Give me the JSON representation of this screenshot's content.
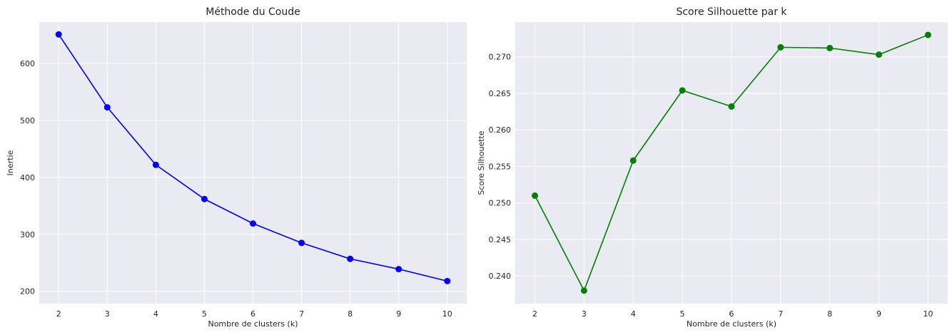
{
  "chart_data": [
    {
      "type": "line",
      "title": "Méthode du Coude",
      "xlabel": "Nombre de clusters (k)",
      "ylabel": "Inertie",
      "x": [
        2,
        3,
        4,
        5,
        6,
        7,
        8,
        9,
        10
      ],
      "xticks": [
        "2",
        "3",
        "4",
        "5",
        "6",
        "7",
        "8",
        "9",
        "10"
      ],
      "yticks": [
        "200",
        "300",
        "400",
        "500",
        "600"
      ],
      "ytick_values": [
        200,
        300,
        400,
        500,
        600
      ],
      "xlim": [
        1.6,
        10.4
      ],
      "ylim": [
        178.4,
        672.6
      ],
      "grid": true,
      "series": [
        {
          "values": [
            651,
            523,
            422,
            362,
            319,
            285,
            257,
            239,
            218
          ],
          "color": "#0000ff",
          "marker": "circle"
        }
      ]
    },
    {
      "type": "line",
      "title": "Score Silhouette par k",
      "xlabel": "Nombre de clusters (k)",
      "ylabel": "Score Silhouette",
      "x": [
        2,
        3,
        4,
        5,
        6,
        7,
        8,
        9,
        10
      ],
      "xticks": [
        "2",
        "3",
        "4",
        "5",
        "6",
        "7",
        "8",
        "9",
        "10"
      ],
      "yticks": [
        "0.240",
        "0.245",
        "0.250",
        "0.255",
        "0.260",
        "0.265",
        "0.270"
      ],
      "ytick_values": [
        0.24,
        0.245,
        0.25,
        0.255,
        0.26,
        0.265,
        0.27
      ],
      "xlim": [
        1.6,
        10.4
      ],
      "ylim": [
        0.23622,
        0.27475
      ],
      "grid": true,
      "series": [
        {
          "values": [
            0.251,
            0.238,
            0.2558,
            0.2654,
            0.2632,
            0.2713,
            0.2712,
            0.2703,
            0.273
          ],
          "color": "#008000",
          "marker": "circle"
        }
      ]
    }
  ]
}
